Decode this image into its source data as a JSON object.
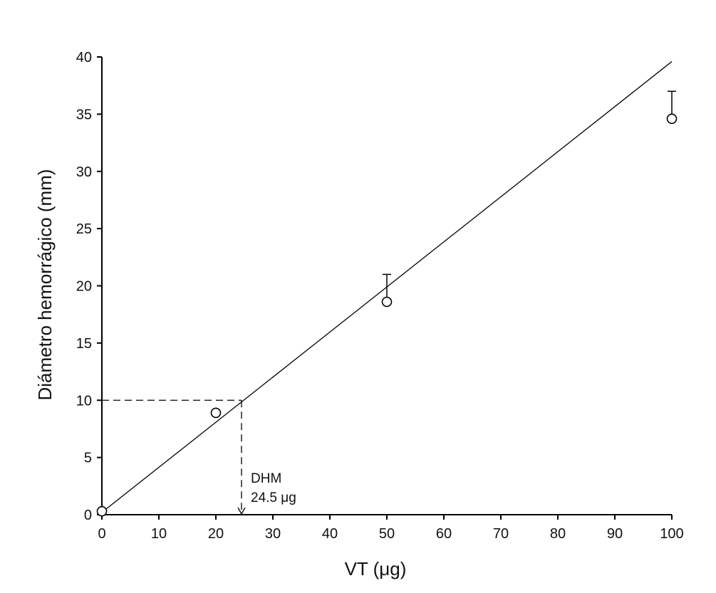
{
  "chart_data": {
    "type": "scatter",
    "title": "",
    "xlabel": "VT (μg)",
    "ylabel": "Diámetro hemorrágico (mm)",
    "xlim": [
      0,
      100
    ],
    "ylim": [
      0,
      40
    ],
    "x_ticks": [
      0,
      10,
      20,
      30,
      40,
      50,
      60,
      70,
      80,
      90,
      100
    ],
    "y_ticks": [
      0,
      5,
      10,
      15,
      20,
      25,
      30,
      35,
      40
    ],
    "grid": false,
    "series": [
      {
        "marker": "open-circle",
        "x": [
          0,
          20,
          50,
          100
        ],
        "y": [
          0.3,
          8.9,
          18.6,
          34.6
        ],
        "error_upper": [
          0.0,
          0.0,
          2.4,
          2.4
        ]
      }
    ],
    "fit_line": {
      "x": [
        0,
        100
      ],
      "y": [
        0.2,
        39.6
      ]
    },
    "reference": {
      "y": 10,
      "x": 24.5,
      "label_line1": "DHM",
      "label_line2": "24.5 μg"
    }
  }
}
